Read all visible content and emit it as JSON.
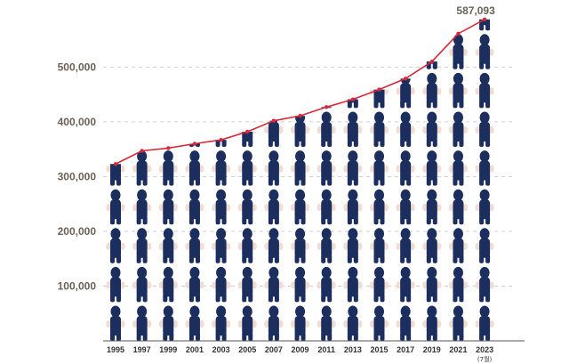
{
  "chart_data": {
    "type": "line",
    "categories": [
      "1995",
      "1997",
      "1999",
      "2001",
      "2003",
      "2005",
      "2007",
      "2009",
      "2011",
      "2013",
      "2015",
      "2017",
      "2019",
      "2021",
      "2023"
    ],
    "category_notes": [
      "",
      "",
      "",
      "",
      "",
      "",
      "",
      "",
      "",
      "",
      "",
      "",
      "",
      "",
      "(7월)"
    ],
    "values": [
      323000,
      347000,
      352000,
      360000,
      367000,
      382000,
      402000,
      411000,
      427000,
      441000,
      459000,
      479000,
      510000,
      561000,
      587093
    ],
    "yticks": [
      100000,
      200000,
      300000,
      400000,
      500000
    ],
    "ytick_labels": [
      "100,000",
      "200,000",
      "300,000",
      "400,000",
      "500,000"
    ],
    "ylim": [
      0,
      590000
    ],
    "data_labels": [
      {
        "index": 14,
        "text": "587,093"
      }
    ],
    "title": "",
    "xlabel": "",
    "ylabel": "",
    "grid": "horizontal dashed",
    "colors": {
      "line": "#d62a3c",
      "figure_body": "#1c2e5e",
      "figure_hands": "#f2ddd3",
      "axis": "#555555",
      "gridline": "#cfcfcf"
    },
    "decoration": "stacked person-figure pictogram columns"
  }
}
